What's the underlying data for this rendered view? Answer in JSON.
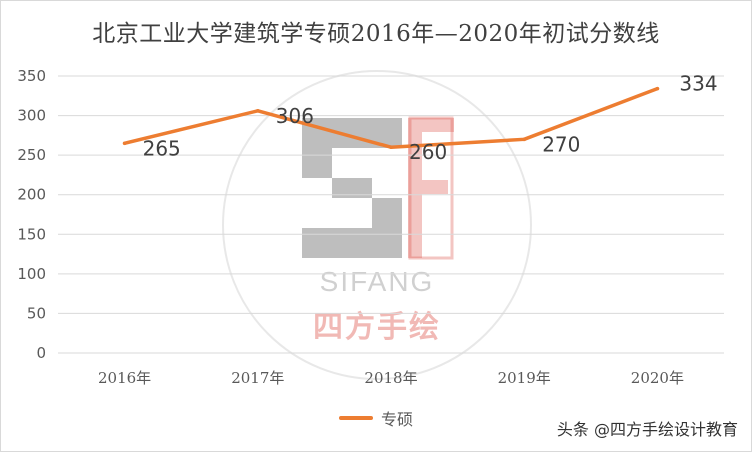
{
  "chart_data": {
    "type": "line",
    "title": "北京工业大学建筑学专硕2016年—2020年初试分数线",
    "categories": [
      "2016年",
      "2017年",
      "2018年",
      "2019年",
      "2020年"
    ],
    "series": [
      {
        "name": "专硕",
        "values": [
          265,
          306,
          260,
          270,
          334
        ],
        "color": "#ED7D31"
      }
    ],
    "data_labels": [
      "265",
      "306",
      "260",
      "270",
      "334"
    ],
    "y_ticks": [
      "0",
      "50",
      "100",
      "150",
      "200",
      "250",
      "300",
      "350"
    ],
    "ylim": [
      0,
      350
    ],
    "grid": true,
    "legend_position": "bottom"
  },
  "watermark": {
    "logo_text": "SIFANG",
    "logo_cn": "四方手绘",
    "credit": "头条 @四方手绘设计教育"
  },
  "colors": {
    "line": "#ED7D31",
    "grid": "#d9d9d9",
    "text": "#595959"
  }
}
